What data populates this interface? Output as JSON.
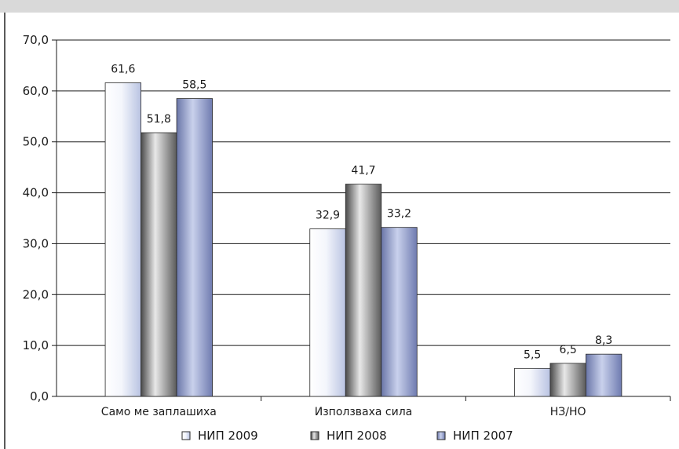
{
  "chart_data": {
    "type": "bar",
    "categories": [
      "Само ме заплашиха",
      "Използваха сила",
      "НЗ/НО"
    ],
    "series": [
      {
        "name": "НИП 2009",
        "values": [
          61.6,
          32.9,
          5.5
        ],
        "labels": [
          "61,6",
          "32,9",
          "5,5"
        ],
        "color": "#eaeef8"
      },
      {
        "name": "НИП 2008",
        "values": [
          51.8,
          41.7,
          6.5
        ],
        "labels": [
          "51,8",
          "41,7",
          "6,5"
        ],
        "color": "#8a8a8a"
      },
      {
        "name": "НИП 2007",
        "values": [
          58.5,
          33.2,
          8.3
        ],
        "labels": [
          "58,5",
          "33,2",
          "8,3"
        ],
        "color": "#9aa6cc"
      }
    ],
    "y_ticks": [
      "0,0",
      "10,0",
      "20,0",
      "30,0",
      "40,0",
      "50,0",
      "60,0",
      "70,0"
    ],
    "ylim": [
      0,
      70
    ],
    "grid": true,
    "legend_position": "bottom"
  }
}
